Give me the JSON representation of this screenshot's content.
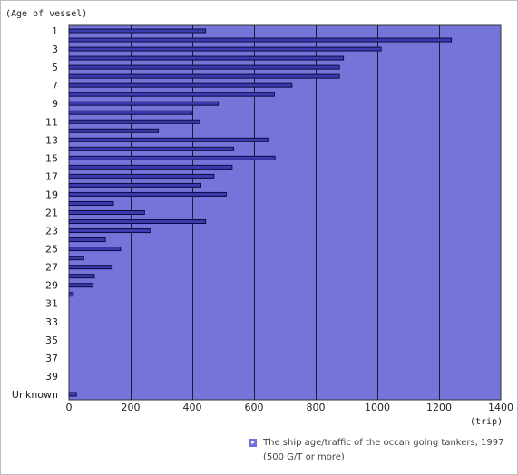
{
  "chart_data": {
    "type": "bar",
    "orientation": "horizontal",
    "ylabel": "(Age of vessel)",
    "xlabel": "(trip)",
    "xlim": [
      0,
      1400
    ],
    "xticks": [
      0,
      200,
      400,
      600,
      800,
      1000,
      1200,
      1400
    ],
    "categories": [
      "1",
      "2",
      "3",
      "4",
      "5",
      "6",
      "7",
      "8",
      "9",
      "10",
      "11",
      "12",
      "13",
      "14",
      "15",
      "16",
      "17",
      "18",
      "19",
      "20",
      "21",
      "22",
      "23",
      "24",
      "25",
      "26",
      "27",
      "28",
      "29",
      "30",
      "31",
      "32",
      "33",
      "34",
      "35",
      "36",
      "37",
      "38",
      "39",
      "40",
      "Unknown"
    ],
    "category_labels_shown": [
      "1",
      "3",
      "5",
      "7",
      "9",
      "11",
      "13",
      "15",
      "17",
      "19",
      "21",
      "23",
      "25",
      "27",
      "29",
      "31",
      "33",
      "35",
      "37",
      "39",
      "Unknown"
    ],
    "values": [
      443,
      1240,
      1012,
      890,
      877,
      877,
      723,
      666,
      484,
      400,
      424,
      290,
      645,
      534,
      668,
      529,
      470,
      428,
      510,
      144,
      245,
      443,
      265,
      118,
      167,
      48,
      140,
      82,
      78,
      14,
      0,
      0,
      0,
      0,
      0,
      0,
      0,
      0,
      0,
      0,
      24
    ],
    "legend": {
      "line1": "The ship age/traffic of the occan going tankers, 1997",
      "line2": "(500 G/T or more)"
    },
    "colors": {
      "plot_bg": "#7474d9",
      "bar": "#3b3bb0",
      "bar_edge": "#0c0c40",
      "grid": "#1a1a30"
    }
  }
}
